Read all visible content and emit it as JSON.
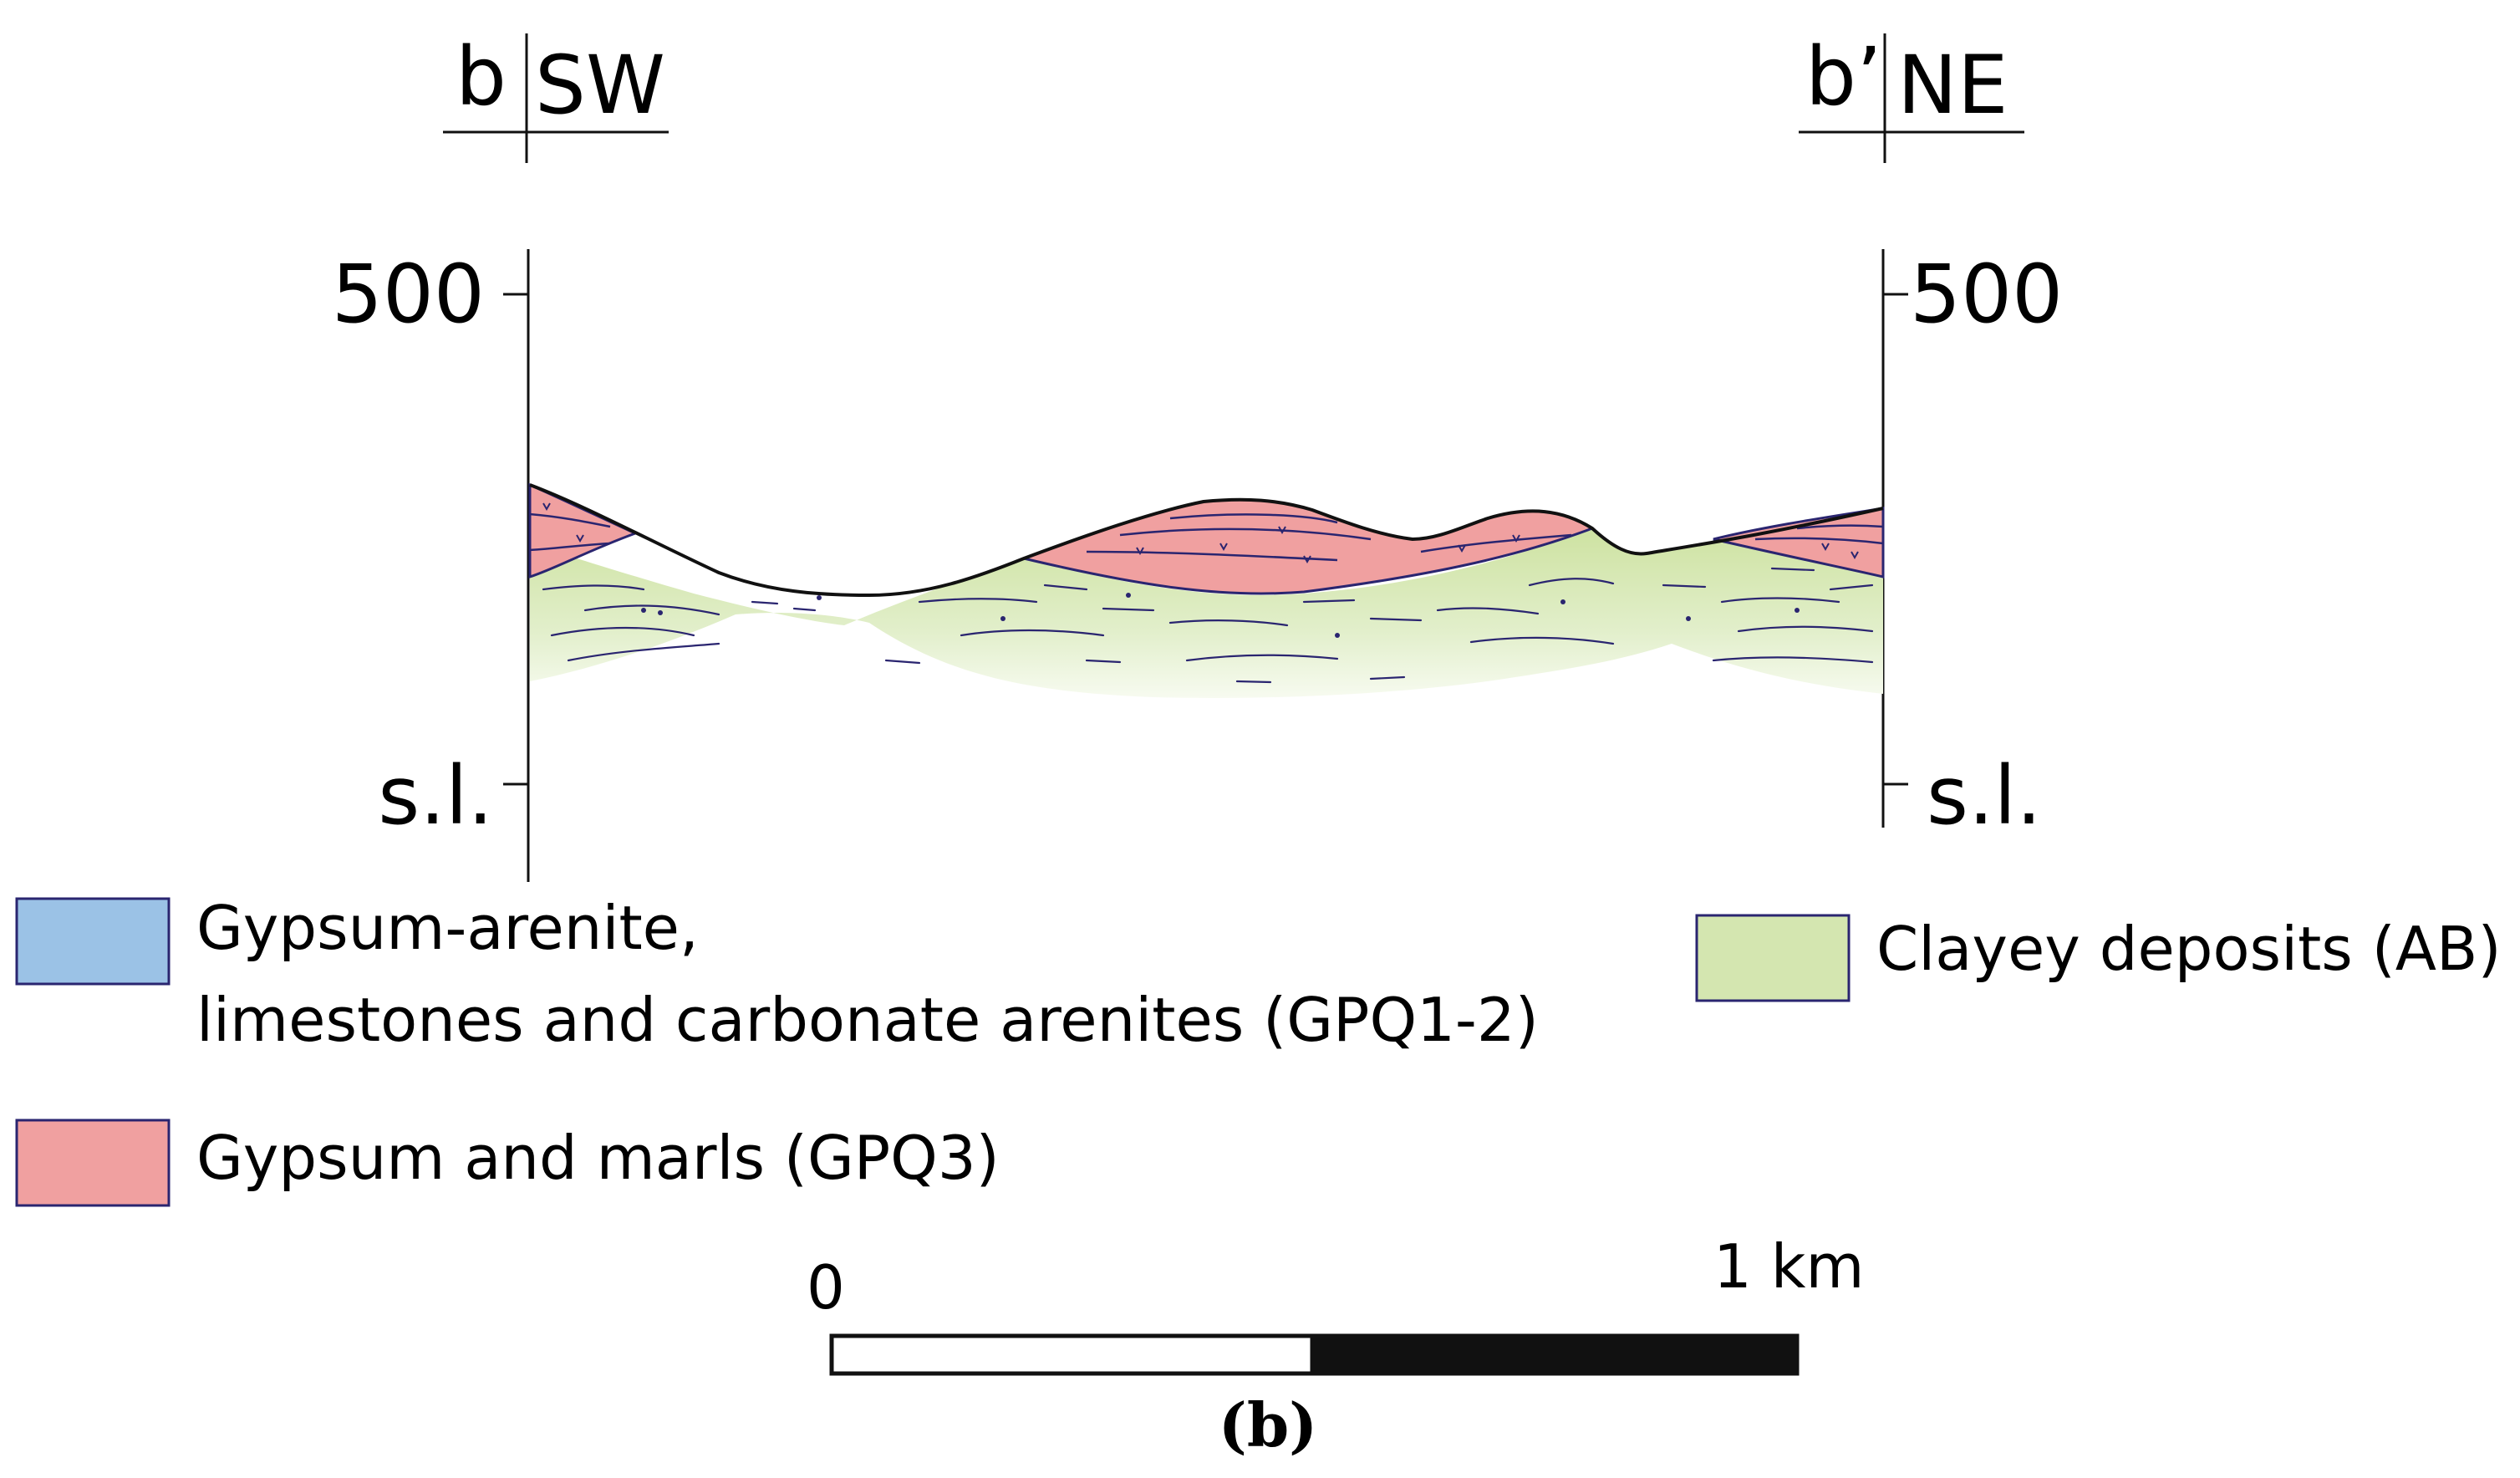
{
  "section": {
    "left_marker": "b",
    "left_direction": "SW",
    "right_marker": "b’",
    "right_direction": "NE",
    "elevation_top": "500",
    "elevation_base": "s.l."
  },
  "legend": {
    "items": [
      {
        "key": "gpq12",
        "line1": "Gypsum-arenite,",
        "line2": "limestones and carbonate arenites (GPQ1-2)",
        "color": "#9bc2e6"
      },
      {
        "key": "gpq3",
        "label": "Gypsum and marls (GPQ3)",
        "color": "#f0a0a0"
      },
      {
        "key": "ab",
        "label": "Clayey deposits (AB)",
        "color": "#d4e6b0"
      }
    ]
  },
  "scale_bar": {
    "start": "0",
    "end": "1 km"
  },
  "caption": "(b)",
  "colors": {
    "gypsum_marls": "#f0a0a0",
    "clayey": "#d4e6b0",
    "gypsum_arenite": "#9bc2e6",
    "boundary_line": "#2a2570",
    "axis": "#111111"
  }
}
